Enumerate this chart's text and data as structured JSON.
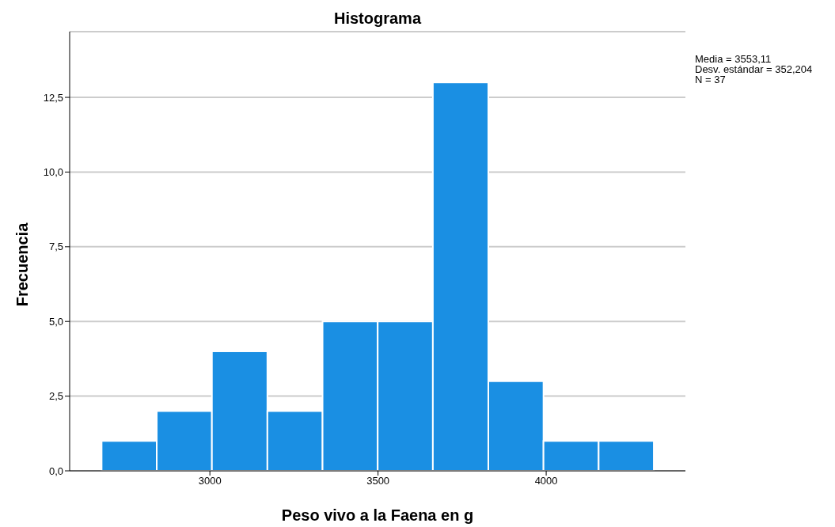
{
  "chart_data": {
    "type": "histogram",
    "title": "Histograma",
    "xlabel": "Peso vivo a la Faena en g",
    "ylabel": "Frecuencia",
    "bins": [
      2678,
      2842,
      3006,
      3171,
      3335,
      3499,
      3663,
      3828,
      3992,
      4156,
      4320
    ],
    "values": [
      1,
      2,
      4,
      2,
      5,
      5,
      13,
      3,
      1,
      1
    ],
    "color": "#1a8fe3",
    "xlim": [
      2583,
      4414
    ],
    "xticks": [
      3000,
      3500,
      4000
    ],
    "ylim": [
      0,
      14.7
    ],
    "yticks": [
      {
        "value": 0,
        "label": "0,0"
      },
      {
        "value": 2.5,
        "label": "2,5"
      },
      {
        "value": 5,
        "label": "5,0"
      },
      {
        "value": 7.5,
        "label": "7,5"
      },
      {
        "value": 10,
        "label": "10,0"
      },
      {
        "value": 12.5,
        "label": "12,5"
      }
    ],
    "grid": "y",
    "annotations": [
      "Media = 3553,11",
      "Desv. estándar = 352,204",
      "N = 37"
    ]
  }
}
